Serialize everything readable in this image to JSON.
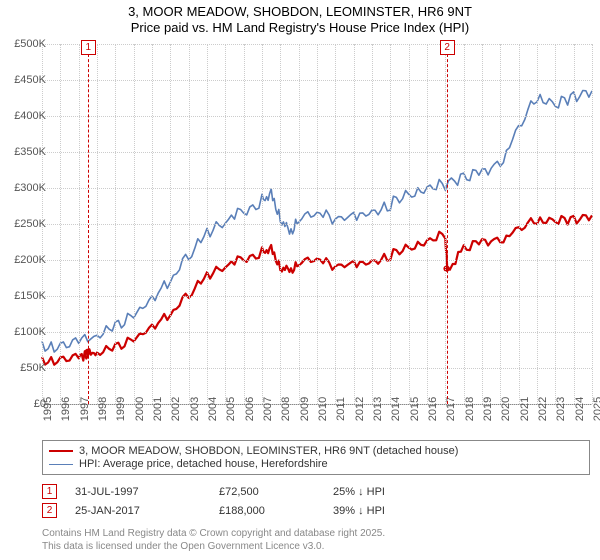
{
  "title": {
    "line1": "3, MOOR MEADOW, SHOBDON, LEOMINSTER, HR6 9NT",
    "line2": "Price paid vs. HM Land Registry's House Price Index (HPI)",
    "fontsize": 13,
    "color": "#000000"
  },
  "chart": {
    "type": "line",
    "background_color": "#ffffff",
    "grid_color": "#cccccc",
    "grid_style": "dotted",
    "axis_color": "#888888",
    "x": {
      "min": 1995,
      "max": 2025,
      "ticks": [
        1995,
        1996,
        1997,
        1998,
        1999,
        2000,
        2001,
        2002,
        2003,
        2004,
        2005,
        2006,
        2007,
        2008,
        2009,
        2010,
        2011,
        2012,
        2013,
        2014,
        2015,
        2016,
        2017,
        2018,
        2019,
        2020,
        2021,
        2022,
        2023,
        2024,
        2025
      ],
      "label_fontsize": 11,
      "label_color": "#555555",
      "rotation": -90
    },
    "y": {
      "min": 0,
      "max": 500000,
      "ticks": [
        0,
        50000,
        100000,
        150000,
        200000,
        250000,
        300000,
        350000,
        400000,
        450000,
        500000
      ],
      "tick_labels": [
        "£0",
        "£50K",
        "£100K",
        "£150K",
        "£200K",
        "£250K",
        "£300K",
        "£350K",
        "£400K",
        "£450K",
        "£500K"
      ],
      "label_fontsize": 11,
      "label_color": "#555555"
    },
    "series": [
      {
        "name": "price_paid",
        "color": "#cc0000",
        "line_width": 2.2,
        "x": [
          1995,
          1996,
          1997,
          1997.5,
          1998,
          1999,
          2000,
          2001,
          2002,
          2003,
          2004,
          2005,
          2006,
          2007,
          2007.5,
          2008,
          2008.5,
          2009,
          2010,
          2011,
          2012,
          2013,
          2014,
          2015,
          2016,
          2017,
          2017.1,
          2018,
          2019,
          2020,
          2021,
          2022,
          2023,
          2024,
          2025
        ],
        "y": [
          62000,
          65000,
          68000,
          72500,
          75000,
          82000,
          95000,
          110000,
          130000,
          155000,
          180000,
          195000,
          205000,
          215000,
          218000,
          195000,
          188000,
          200000,
          205000,
          195000,
          198000,
          200000,
          210000,
          220000,
          230000,
          240000,
          188000,
          220000,
          228000,
          232000,
          248000,
          258000,
          258000,
          260000,
          262000
        ]
      },
      {
        "name": "hpi",
        "color": "#5a7fb8",
        "line_width": 1.6,
        "x": [
          1995,
          1996,
          1997,
          1998,
          1999,
          2000,
          2001,
          2002,
          2003,
          2004,
          2005,
          2006,
          2007,
          2007.5,
          2008,
          2008.5,
          2009,
          2010,
          2011,
          2012,
          2013,
          2014,
          2015,
          2016,
          2017,
          2018,
          2019,
          2020,
          2021,
          2022,
          2023,
          2024,
          2025
        ],
        "y": [
          83000,
          85000,
          90000,
          100000,
          112000,
          130000,
          150000,
          178000,
          210000,
          240000,
          258000,
          272000,
          288000,
          295000,
          265000,
          242000,
          262000,
          270000,
          262000,
          265000,
          270000,
          282000,
          295000,
          305000,
          310000,
          320000,
          325000,
          340000,
          390000,
          430000,
          420000,
          432000,
          435000
        ]
      }
    ],
    "markers": [
      {
        "id": "1",
        "x": 1997.5,
        "sale_point_y": 72500
      },
      {
        "id": "2",
        "x": 2017.07,
        "sale_point_y": 188000
      }
    ],
    "marker_style": {
      "line_color": "#cc0000",
      "line_dash": "4,3",
      "box_border": "#cc0000",
      "box_bg": "#ffffff",
      "box_size": 13,
      "dot_radius": 3.2
    }
  },
  "legend": {
    "border_color": "#888888",
    "fontsize": 11,
    "items": [
      {
        "color": "#cc0000",
        "width": 2.5,
        "label": "3, MOOR MEADOW, SHOBDON, LEOMINSTER, HR6 9NT (detached house)"
      },
      {
        "color": "#5a7fb8",
        "width": 1.6,
        "label": "HPI: Average price, detached house, Herefordshire"
      }
    ]
  },
  "annotations": {
    "rows": [
      {
        "id": "1",
        "date": "31-JUL-1997",
        "price": "£72,500",
        "pct": "25% ↓ HPI"
      },
      {
        "id": "2",
        "date": "25-JAN-2017",
        "price": "£188,000",
        "pct": "39% ↓ HPI"
      }
    ],
    "fontsize": 11
  },
  "attribution": {
    "line1": "Contains HM Land Registry data © Crown copyright and database right 2025.",
    "line2": "This data is licensed under the Open Government Licence v3.0.",
    "fontsize": 10,
    "color": "#888888"
  }
}
